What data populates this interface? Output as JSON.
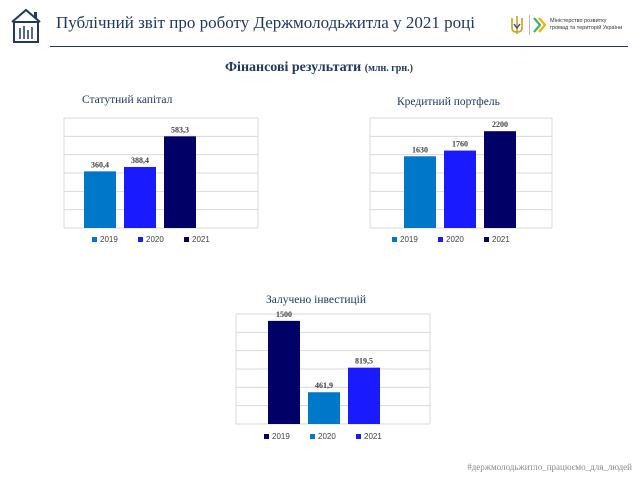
{
  "header": {
    "title": "Публічний звіт про роботу Держмолодьжитла  у 2021 році",
    "ministry_line1": "Міністерство розвитку",
    "ministry_line2": "громад та територій України"
  },
  "subtitle": {
    "main": "Фінансові  результати",
    "unit": "(млн. грн.)"
  },
  "colors": {
    "c2019_a": "#0077c8",
    "c2020_a": "#1a1aff",
    "c2021_a": "#000066",
    "dark": "#000066",
    "mid": "#0077c8",
    "bright": "#1a1aff"
  },
  "chart_data": [
    {
      "type": "bar",
      "title": "Статутний капітал",
      "categories": [
        "2019",
        "2020",
        "2021"
      ],
      "values": [
        360.4,
        388.4,
        583.3
      ],
      "labels": [
        "360,4",
        "388,4",
        "583,3"
      ],
      "colors": [
        "#0077c8",
        "#1a1aff",
        "#000066"
      ],
      "legend": [
        "2019",
        "2020",
        "2021"
      ],
      "ylim": [
        0,
        700
      ]
    },
    {
      "type": "bar",
      "title": "Кредитний портфель",
      "categories": [
        "2019",
        "2020",
        "2021"
      ],
      "values": [
        1630,
        1760,
        2200
      ],
      "labels": [
        "1630",
        "1760",
        "2200"
      ],
      "colors": [
        "#0077c8",
        "#1a1aff",
        "#000066"
      ],
      "legend": [
        "2019",
        "2020",
        "2021"
      ],
      "ylim": [
        0,
        2500
      ]
    },
    {
      "type": "bar",
      "title": "Залучено інвестицій",
      "categories": [
        "2019",
        "2020",
        "2021"
      ],
      "values": [
        1500,
        461.9,
        819.5
      ],
      "labels": [
        "1500",
        "461,9",
        "819,5"
      ],
      "colors": [
        "#000066",
        "#0077c8",
        "#1a1aff"
      ],
      "legend": [
        "2019",
        "2020",
        "2021"
      ],
      "ylim": [
        0,
        1600
      ]
    }
  ],
  "footer": "#держмолодьжитло_працюємо_для_людей"
}
